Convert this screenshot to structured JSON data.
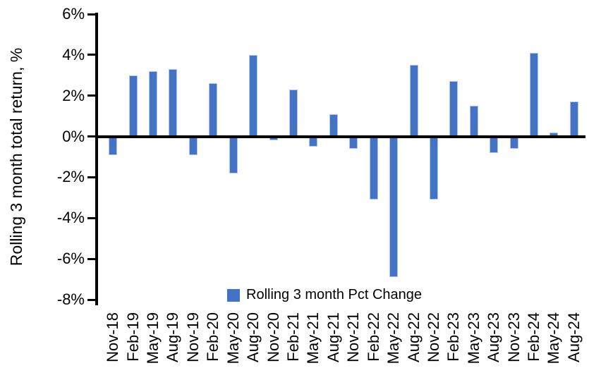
{
  "chart_data": {
    "type": "bar",
    "title": "",
    "xlabel": "",
    "ylabel": "Rolling 3 month total return, %",
    "legend": [
      "Rolling 3 month Pct Change"
    ],
    "legend_position": "bottom-inside",
    "categories": [
      "Nov-18",
      "Feb-19",
      "May-19",
      "Aug-19",
      "Nov-19",
      "Feb-20",
      "May-20",
      "Aug-20",
      "Nov-20",
      "Feb-21",
      "May-21",
      "Aug-21",
      "Nov-21",
      "Feb-22",
      "May-22",
      "Aug-22",
      "Nov-22",
      "Feb-23",
      "May-23",
      "Aug-23",
      "Nov-23",
      "Feb-24",
      "May-24",
      "Aug-24"
    ],
    "values": [
      -0.9,
      3.0,
      3.2,
      3.3,
      -0.9,
      2.6,
      -1.8,
      4.0,
      -0.2,
      2.3,
      -0.5,
      1.1,
      -0.6,
      -3.1,
      -6.9,
      3.5,
      -3.1,
      2.7,
      1.5,
      -0.8,
      -0.6,
      4.1,
      0.2,
      1.7
    ],
    "ylim": [
      -8,
      6
    ],
    "ytick_step": 2,
    "ytick_labels": [
      "6%",
      "4%",
      "2%",
      "0%",
      "-2%",
      "-4%",
      "-6%",
      "-8%"
    ],
    "grid": false,
    "bar_color": "#4472C4",
    "bar_border_color": "#AEC6EA",
    "axis_color": "#000000",
    "background": "#FFFFFF"
  }
}
